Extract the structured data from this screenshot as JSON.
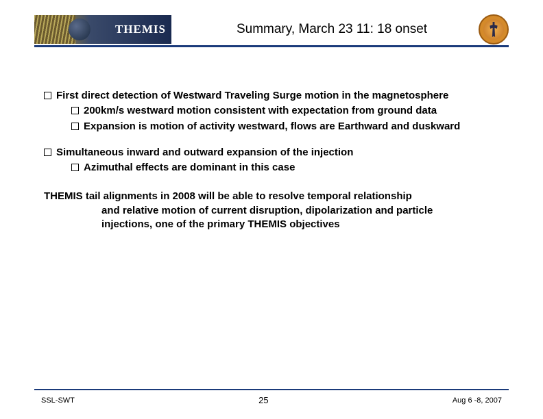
{
  "header": {
    "logo_text": "THEMIS",
    "title": "Summary, March 23 11: 18 onset"
  },
  "colors": {
    "rule": "#1a3a7a",
    "badge_bg": "#d48a2a",
    "text": "#000000",
    "background": "#ffffff"
  },
  "content": {
    "group1": {
      "l1": "First direct detection of Westward Traveling Surge motion in the magnetosphere",
      "l2a": "200km/s westward motion consistent with expectation from ground data",
      "l2b": "Expansion is motion of activity westward, flows are Earthward and duskward"
    },
    "group2": {
      "l1": "Simultaneous inward and outward expansion of the injection",
      "l2a": "Azimuthal effects are dominant in this case"
    },
    "para_line1": "THEMIS tail alignments in 2008 will be able to resolve temporal relationship",
    "para_line2": "and relative motion of current disruption, dipolarization and particle",
    "para_line3": "injections, one of the primary THEMIS objectives"
  },
  "footer": {
    "left": "SSL-SWT",
    "page": "25",
    "right": "Aug 6 -8, 2007"
  }
}
